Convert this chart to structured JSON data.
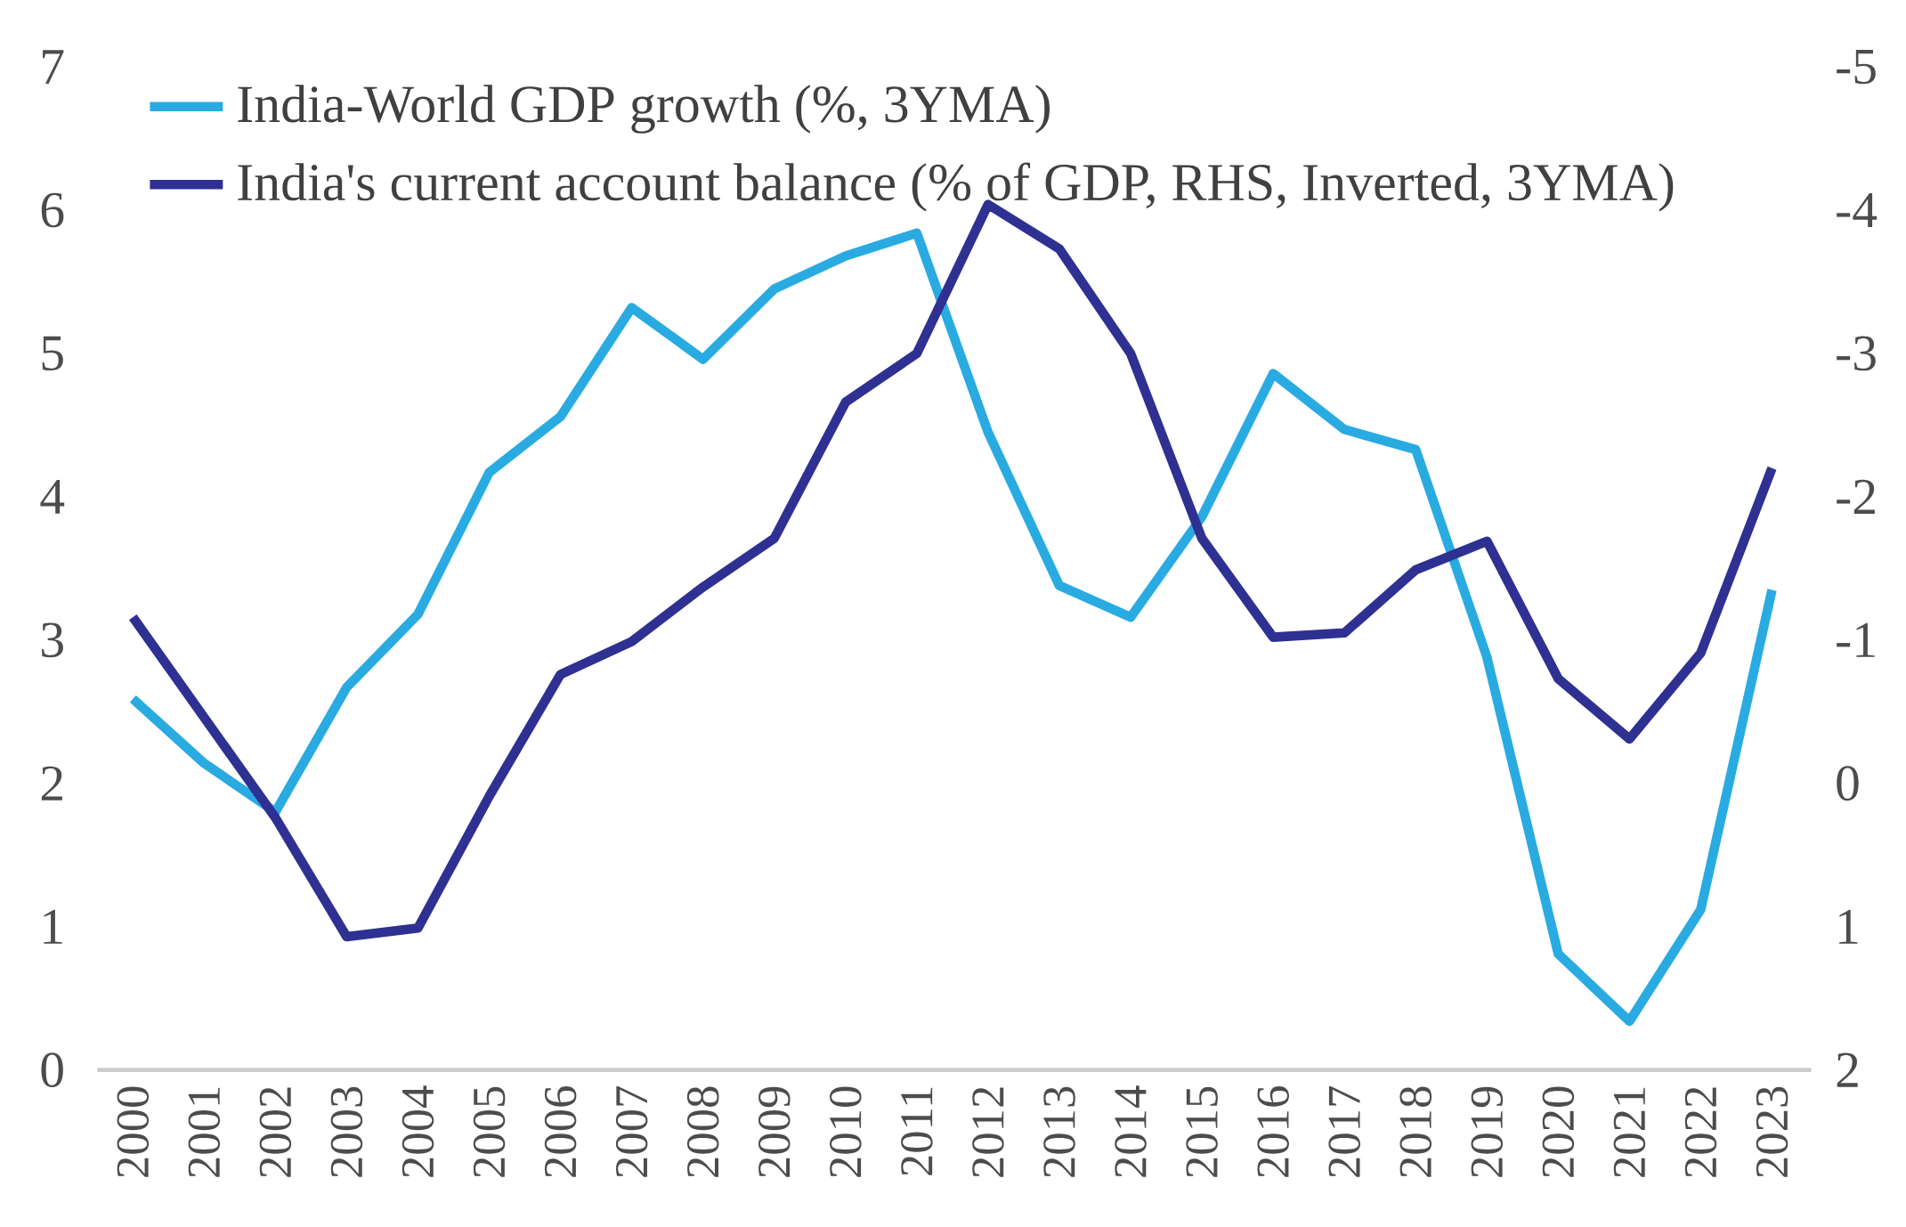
{
  "chart_data": {
    "type": "line",
    "categories": [
      "2000",
      "2001",
      "2002",
      "2003",
      "2004",
      "2005",
      "2006",
      "2007",
      "2008",
      "2009",
      "2010",
      "2011",
      "2012",
      "2013",
      "2014",
      "2015",
      "2016",
      "2017",
      "2018",
      "2019",
      "2020",
      "2021",
      "2022",
      "2023"
    ],
    "series": [
      {
        "name": "India-World GDP growth (%, 3YMA)",
        "color": "#29abe2",
        "values": [
          2.59,
          2.14,
          1.8,
          2.67,
          3.18,
          4.17,
          4.56,
          5.32,
          4.96,
          5.45,
          5.68,
          5.84,
          4.45,
          3.38,
          3.16,
          3.86,
          4.86,
          4.47,
          4.33,
          2.88,
          0.81,
          0.34,
          1.12,
          3.35
        ]
      },
      {
        "name": "India's current account balance (% of GDP, RHS, Inverted, 3YMA)",
        "color": "#2e3192",
        "axis": "y2",
        "values": [
          -1.16,
          -0.46,
          0.24,
          1.07,
          1.01,
          0.09,
          -0.76,
          -0.99,
          -1.37,
          -1.71,
          -2.66,
          -3.0,
          -4.04,
          -3.73,
          -3.0,
          -1.71,
          -1.02,
          -1.05,
          -1.49,
          -1.69,
          -0.73,
          -0.31,
          -0.91,
          -2.2
        ]
      }
    ],
    "ylim": [
      0,
      7
    ],
    "yticks": [
      0,
      1,
      2,
      3,
      4,
      5,
      6,
      7
    ],
    "y2lim": [
      2,
      -5
    ],
    "y2ticks": [
      2,
      1,
      0,
      -1,
      -2,
      -3,
      -4,
      -5
    ],
    "grid": false,
    "legend": "top left",
    "marker": "none",
    "line_style": "solid"
  }
}
